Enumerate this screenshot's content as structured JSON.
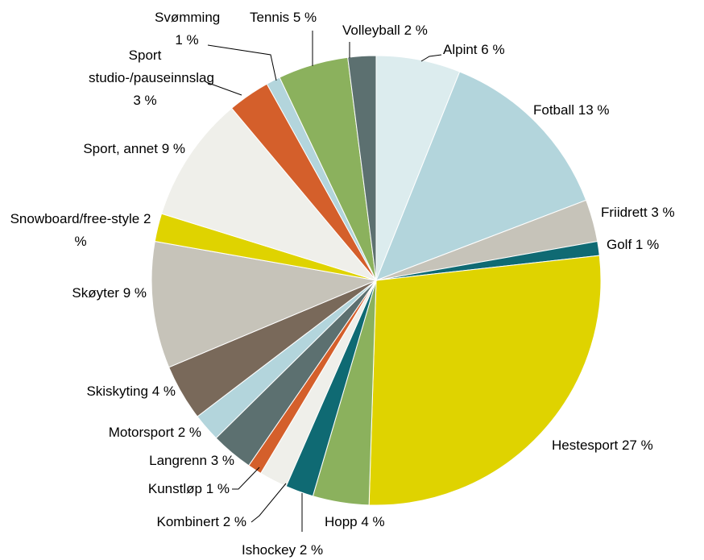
{
  "chart_data": {
    "type": "pie",
    "categories": [
      "Alpint",
      "Fotball",
      "Friidrett",
      "Golf",
      "Hestesport",
      "Hopp",
      "Ishockey",
      "Kombinert",
      "Kunstløp",
      "Langrenn",
      "Motorsport",
      "Skiskyting",
      "Skøyter",
      "Snowboard/free-style",
      "Sport, annet",
      "Sport studio-/pauseinnslag",
      "Svømming",
      "Tennis",
      "Volleyball"
    ],
    "values": [
      6,
      13,
      3,
      1,
      27,
      4,
      2,
      2,
      1,
      3,
      2,
      4,
      9,
      2,
      9,
      3,
      1,
      5,
      2
    ],
    "value_labels": [
      "6 %",
      "13 %",
      "3 %",
      "1 %",
      "27 %",
      "4 %",
      "2 %",
      "2 %",
      "1 %",
      "3 %",
      "2 %",
      "4 %",
      "9 %",
      "2 %",
      "9 %",
      "3 %",
      "1 %",
      "5 %",
      "2 %"
    ],
    "colors": [
      "#dcecee",
      "#b3d5dc",
      "#c6c3b9",
      "#0f6a73",
      "#dfd300",
      "#8bb15d",
      "#0f6a73",
      "#efefea",
      "#d45f2b",
      "#5c7070",
      "#b3d5dc",
      "#79695a",
      "#c6c3b9",
      "#dfd300",
      "#efefea",
      "#d45f2b",
      "#b3d5dc",
      "#8bb15d",
      "#5c7070"
    ]
  }
}
